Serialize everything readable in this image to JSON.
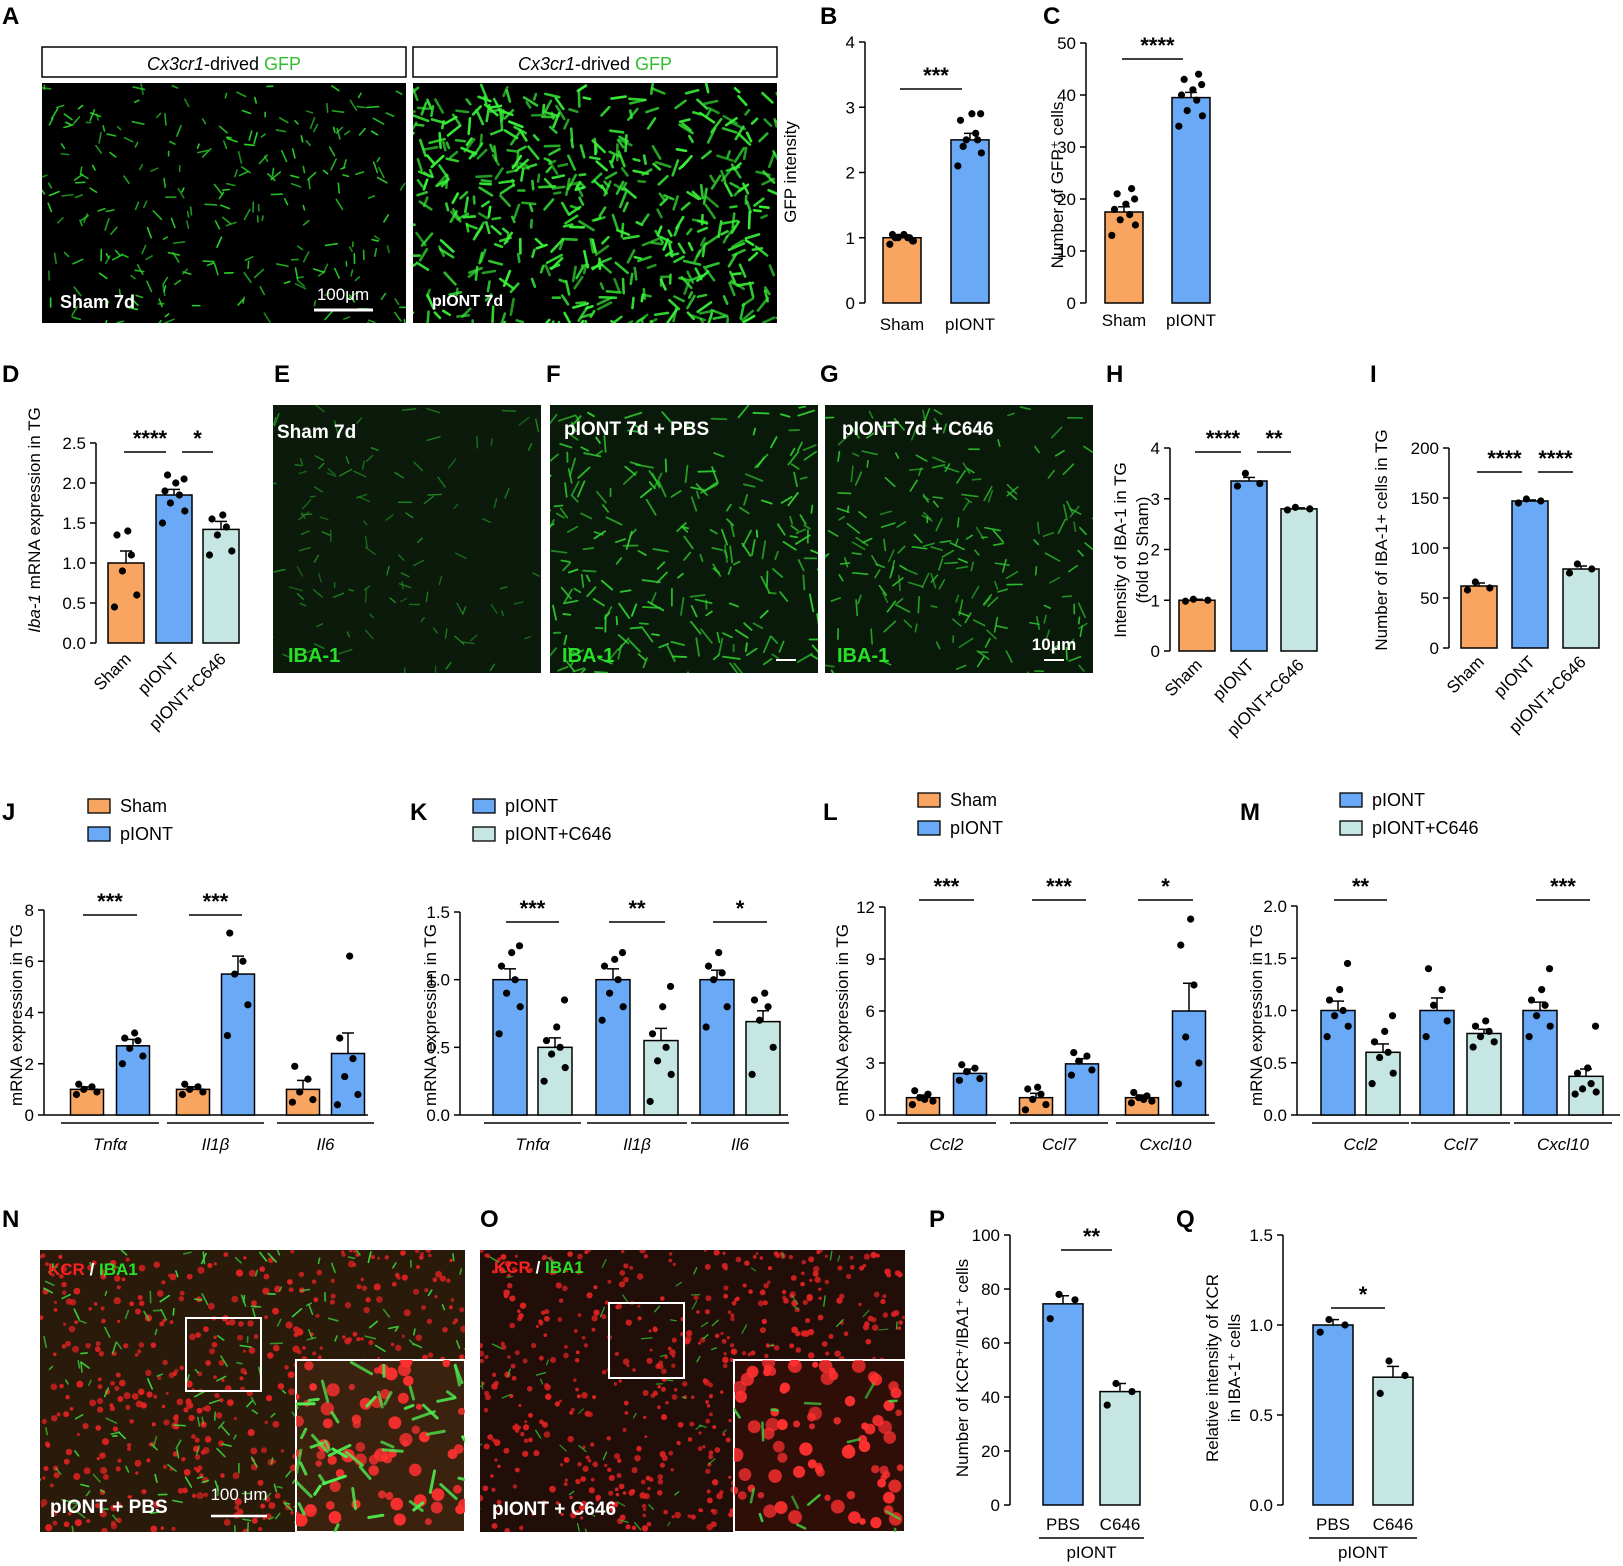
{
  "colors": {
    "sham": "#f8a561",
    "pIONT": "#69a9f5",
    "c646": "#c5e6e2"
  },
  "panels": {
    "A": {
      "letter": "A",
      "images": [
        {
          "header_italic": "Cx3cr1",
          "header_plain": "-drived ",
          "header_green": "GFP",
          "label": "Sham 7d",
          "scale": "100μm"
        },
        {
          "header_italic": "Cx3cr1",
          "header_plain": "-drived ",
          "header_green": "GFP",
          "label": "pIONT 7d"
        }
      ]
    },
    "E": {
      "letter": "E",
      "label": "Sham 7d",
      "stain": "IBA-1"
    },
    "F": {
      "letter": "F",
      "label": "pIONT 7d + PBS",
      "stain": "IBA-1"
    },
    "G": {
      "letter": "G",
      "label": "pIONT 7d + C646",
      "stain": "IBA-1",
      "scale": "10μm"
    },
    "N": {
      "letter": "N",
      "label": "pIONT + PBS",
      "stain_red": "KCR",
      "stain_sep": " / ",
      "stain_green": "IBA1",
      "scale": "100 μm"
    },
    "O": {
      "letter": "O",
      "label": "pIONT + C646",
      "stain_red": "KCR",
      "stain_sep": " / ",
      "stain_green": "IBA1"
    }
  },
  "chart_data": [
    {
      "id": "B",
      "letter": "B",
      "type": "bar",
      "ylabel": "GFP intensity",
      "yticks": [
        "0",
        "1",
        "2",
        "3",
        "4"
      ],
      "ylim": [
        0,
        4
      ],
      "categories": [
        "Sham",
        "pIONT"
      ],
      "values": [
        1.0,
        2.5
      ],
      "sem": [
        0.05,
        0.1
      ],
      "points": [
        [
          0.9,
          0.95,
          1.0,
          1.0,
          1.05,
          1.05,
          0.95,
          1.0,
          1.0
        ],
        [
          2.1,
          2.3,
          2.5,
          2.6,
          2.8,
          2.9,
          2.9,
          2.4,
          2.5
        ]
      ],
      "colors": [
        "sham",
        "pIONT"
      ],
      "sig": [
        {
          "text": "***",
          "from": 0,
          "to": 1
        }
      ]
    },
    {
      "id": "C",
      "letter": "C",
      "type": "bar",
      "ylabel": "Number of GFP⁺ cells",
      "yticks": [
        "0",
        "10",
        "20",
        "30",
        "40",
        "50"
      ],
      "ylim": [
        0,
        50
      ],
      "categories": [
        "Sham",
        "pIONT"
      ],
      "values": [
        17.5,
        39.5
      ],
      "sem": [
        1.0,
        1.0
      ],
      "points": [
        [
          13,
          15,
          16,
          17,
          18,
          19,
          20,
          21,
          22
        ],
        [
          34,
          36,
          37,
          39,
          40,
          41,
          42,
          43,
          44
        ]
      ],
      "colors": [
        "sham",
        "pIONT"
      ],
      "sig": [
        {
          "text": "****",
          "from": 0,
          "to": 1
        }
      ]
    },
    {
      "id": "D",
      "letter": "D",
      "type": "bar",
      "ylabel_italic": "Iba-1",
      "ylabel": " mRNA expression in TG",
      "yticks": [
        "0.0",
        "0.5",
        "1.0",
        "1.5",
        "2.0",
        "2.5"
      ],
      "ylim": [
        0,
        2.5
      ],
      "categories": [
        "Sham",
        "pIONT",
        "pIONT+C646"
      ],
      "values": [
        1.0,
        1.85,
        1.42
      ],
      "sem": [
        0.15,
        0.07,
        0.1
      ],
      "points": [
        [
          0.45,
          0.6,
          0.9,
          1.1,
          1.35,
          1.4
        ],
        [
          1.5,
          1.65,
          1.75,
          1.85,
          1.9,
          2.0,
          2.05,
          2.1
        ],
        [
          1.1,
          1.15,
          1.35,
          1.45,
          1.55,
          1.6
        ]
      ],
      "colors": [
        "sham",
        "pIONT",
        "c646"
      ],
      "sig": [
        {
          "text": "****",
          "from": 0,
          "to": 1
        },
        {
          "text": "*",
          "from": 1,
          "to": 2
        }
      ]
    },
    {
      "id": "H",
      "letter": "H",
      "type": "bar",
      "ylabel": "Intensity of IBA-1 in TG",
      "ylabel2": "(fold to Sham)",
      "yticks": [
        "0",
        "1",
        "2",
        "3",
        "4"
      ],
      "ylim": [
        0,
        4
      ],
      "categories": [
        "Sham",
        "pIONT",
        "pIONT+C646"
      ],
      "values": [
        1.0,
        3.35,
        2.8
      ],
      "sem": [
        0.02,
        0.07,
        0.02
      ],
      "points": [
        [
          0.98,
          1.0,
          1.02
        ],
        [
          3.25,
          3.3,
          3.5
        ],
        [
          2.78,
          2.8,
          2.83
        ]
      ],
      "colors": [
        "sham",
        "pIONT",
        "c646"
      ],
      "sig": [
        {
          "text": "****",
          "from": 0,
          "to": 1
        },
        {
          "text": "**",
          "from": 1,
          "to": 2
        }
      ]
    },
    {
      "id": "I",
      "letter": "I",
      "type": "bar",
      "ylabel": "Number of IBA-1+ cells in TG",
      "yticks": [
        "0",
        "50",
        "100",
        "150",
        "200"
      ],
      "ylim": [
        0,
        200
      ],
      "categories": [
        "Sham",
        "pIONT",
        "pIONT+C646"
      ],
      "values": [
        62,
        147,
        79
      ],
      "sem": [
        3,
        1,
        3
      ],
      "points": [
        [
          58,
          60,
          66
        ],
        [
          145,
          147,
          149
        ],
        [
          75,
          79,
          84
        ]
      ],
      "colors": [
        "sham",
        "pIONT",
        "c646"
      ],
      "sig": [
        {
          "text": "****",
          "from": 0,
          "to": 1
        },
        {
          "text": "****",
          "from": 1,
          "to": 2
        }
      ]
    },
    {
      "id": "J",
      "letter": "J",
      "type": "grouped-bar",
      "ylabel": "mRNA expression in TG",
      "yticks": [
        "0",
        "2",
        "4",
        "6",
        "8"
      ],
      "ylim": [
        0,
        8
      ],
      "legend": [
        "Sham",
        "pIONT"
      ],
      "colors": [
        "sham",
        "pIONT"
      ],
      "groups": [
        "Tnfα",
        "Il1β",
        "Il6"
      ],
      "series": [
        {
          "name": "Sham",
          "values": [
            1.0,
            1.0,
            1.0
          ],
          "sem": [
            0.1,
            0.1,
            0.35
          ],
          "points": [
            [
              0.8,
              0.9,
              1.0,
              1.1,
              1.2
            ],
            [
              0.8,
              0.9,
              1.0,
              1.1,
              1.2
            ],
            [
              0.5,
              0.6,
              0.9,
              1.4,
              1.9
            ]
          ]
        },
        {
          "name": "pIONT",
          "values": [
            2.7,
            5.5,
            2.4
          ],
          "sem": [
            0.25,
            0.7,
            0.8
          ],
          "points": [
            [
              2.0,
              2.3,
              2.6,
              2.9,
              3.0,
              3.2
            ],
            [
              3.1,
              4.3,
              5.5,
              6.0,
              7.1
            ],
            [
              0.4,
              0.8,
              1.5,
              2.2,
              3.0,
              6.2
            ]
          ]
        }
      ],
      "sig": [
        {
          "group": 0,
          "text": "***"
        },
        {
          "group": 1,
          "text": "***"
        }
      ]
    },
    {
      "id": "K",
      "letter": "K",
      "type": "grouped-bar",
      "ylabel": "mRNA expression in TG",
      "yticks": [
        "0.0",
        "0.5",
        "1.0",
        "1.5"
      ],
      "ylim": [
        0,
        1.5
      ],
      "legend": [
        "pIONT",
        "pIONT+C646"
      ],
      "colors": [
        "pIONT",
        "c646"
      ],
      "groups": [
        "Tnfα",
        "Il1β",
        "Il6"
      ],
      "series": [
        {
          "name": "pIONT",
          "values": [
            1.0,
            1.0,
            1.0
          ],
          "sem": [
            0.08,
            0.08,
            0.07
          ],
          "points": [
            [
              0.6,
              0.8,
              0.9,
              1.0,
              1.1,
              1.2,
              1.25
            ],
            [
              0.7,
              0.8,
              0.9,
              1.0,
              1.1,
              1.15,
              1.2
            ],
            [
              0.65,
              0.8,
              1.0,
              1.05,
              1.1,
              1.2
            ]
          ]
        },
        {
          "name": "pIONT+C646",
          "values": [
            0.5,
            0.55,
            0.69
          ],
          "sem": [
            0.07,
            0.09,
            0.08
          ],
          "points": [
            [
              0.25,
              0.35,
              0.45,
              0.5,
              0.55,
              0.65,
              0.85
            ],
            [
              0.1,
              0.3,
              0.4,
              0.5,
              0.6,
              0.8,
              0.95
            ],
            [
              0.3,
              0.5,
              0.7,
              0.8,
              0.85,
              0.9
            ]
          ]
        }
      ],
      "sig": [
        {
          "group": 0,
          "text": "***"
        },
        {
          "group": 1,
          "text": "**"
        },
        {
          "group": 2,
          "text": "*"
        }
      ]
    },
    {
      "id": "L",
      "letter": "L",
      "type": "grouped-bar",
      "ylabel": "mRNA expression in TG",
      "yticks": [
        "0",
        "3",
        "6",
        "9",
        "12"
      ],
      "ylim": [
        0,
        12
      ],
      "legend": [
        "Sham",
        "pIONT"
      ],
      "colors": [
        "sham",
        "pIONT"
      ],
      "groups": [
        "Ccl2",
        "Ccl7",
        "Cxcl10"
      ],
      "series": [
        {
          "name": "Sham",
          "values": [
            1.0,
            1.0,
            1.0
          ],
          "sem": [
            0.15,
            0.25,
            0.15
          ],
          "points": [
            [
              0.6,
              0.8,
              1.0,
              1.2,
              1.4,
              0.9
            ],
            [
              0.3,
              0.6,
              0.9,
              1.2,
              1.5,
              1.6
            ],
            [
              0.7,
              0.8,
              1.0,
              1.1,
              1.3,
              0.9
            ]
          ]
        },
        {
          "name": "pIONT",
          "values": [
            2.4,
            2.95,
            6.0
          ],
          "sem": [
            0.25,
            0.3,
            1.6
          ],
          "points": [
            [
              2.0,
              2.1,
              2.5,
              2.7,
              2.9
            ],
            [
              2.3,
              2.6,
              3.1,
              3.4,
              3.6
            ],
            [
              1.8,
              3.0,
              4.5,
              7.5,
              9.8,
              11.3
            ]
          ]
        }
      ],
      "sig": [
        {
          "group": 0,
          "text": "***"
        },
        {
          "group": 1,
          "text": "***"
        },
        {
          "group": 2,
          "text": "*"
        }
      ]
    },
    {
      "id": "M",
      "letter": "M",
      "type": "grouped-bar",
      "ylabel": "mRNA expression in TG",
      "yticks": [
        "0.0",
        "0.5",
        "1.0",
        "1.5",
        "2.0"
      ],
      "ylim": [
        0,
        2
      ],
      "legend": [
        "pIONT",
        "pIONT+C646"
      ],
      "colors": [
        "pIONT",
        "c646"
      ],
      "groups": [
        "Ccl2",
        "Ccl7",
        "Cxcl10"
      ],
      "series": [
        {
          "name": "pIONT",
          "values": [
            1.0,
            1.0,
            1.0
          ],
          "sem": [
            0.09,
            0.12,
            0.08
          ],
          "points": [
            [
              0.75,
              0.85,
              0.95,
              1.0,
              1.1,
              1.2,
              1.45
            ],
            [
              0.75,
              0.9,
              1.05,
              1.2,
              1.4
            ],
            [
              0.75,
              0.85,
              0.95,
              1.05,
              1.1,
              1.2,
              1.4
            ]
          ]
        },
        {
          "name": "pIONT+C646",
          "values": [
            0.6,
            0.78,
            0.37
          ],
          "sem": [
            0.08,
            0.04,
            0.07
          ],
          "points": [
            [
              0.3,
              0.4,
              0.55,
              0.6,
              0.7,
              0.8,
              0.95
            ],
            [
              0.65,
              0.7,
              0.75,
              0.8,
              0.85,
              0.9
            ],
            [
              0.2,
              0.22,
              0.25,
              0.3,
              0.4,
              0.45,
              0.85
            ]
          ]
        }
      ],
      "sig": [
        {
          "group": 0,
          "text": "**"
        },
        {
          "group": 2,
          "text": "***"
        }
      ]
    },
    {
      "id": "P",
      "letter": "P",
      "type": "bar",
      "ylabel": "Number of KCR⁺/IBA1⁺ cells",
      "yticks": [
        "0",
        "20",
        "40",
        "60",
        "80",
        "100"
      ],
      "ylim": [
        0,
        100
      ],
      "categories": [
        "PBS",
        "C646"
      ],
      "values": [
        74.5,
        42
      ],
      "sem": [
        3,
        3
      ],
      "points": [
        [
          69,
          76,
          78
        ],
        [
          37,
          42,
          45
        ]
      ],
      "colors": [
        "pIONT",
        "c646"
      ],
      "sig": [
        {
          "text": "**",
          "from": 0,
          "to": 1
        }
      ],
      "bottom_label": "pIONT"
    },
    {
      "id": "Q",
      "letter": "Q",
      "type": "bar",
      "ylabel": "Relative intensity of KCR",
      "ylabel2": "in IBA-1⁺ cells",
      "yticks": [
        "0.0",
        "0.5",
        "1.0",
        "1.5"
      ],
      "ylim": [
        0,
        1.5
      ],
      "categories": [
        "PBS",
        "C646"
      ],
      "values": [
        1.0,
        0.71
      ],
      "sem": [
        0.03,
        0.06
      ],
      "points": [
        [
          0.96,
          1.0,
          1.03
        ],
        [
          0.62,
          0.72,
          0.8
        ]
      ],
      "colors": [
        "pIONT",
        "c646"
      ],
      "sig": [
        {
          "text": "*",
          "from": 0,
          "to": 1
        }
      ],
      "bottom_label": "pIONT"
    }
  ]
}
